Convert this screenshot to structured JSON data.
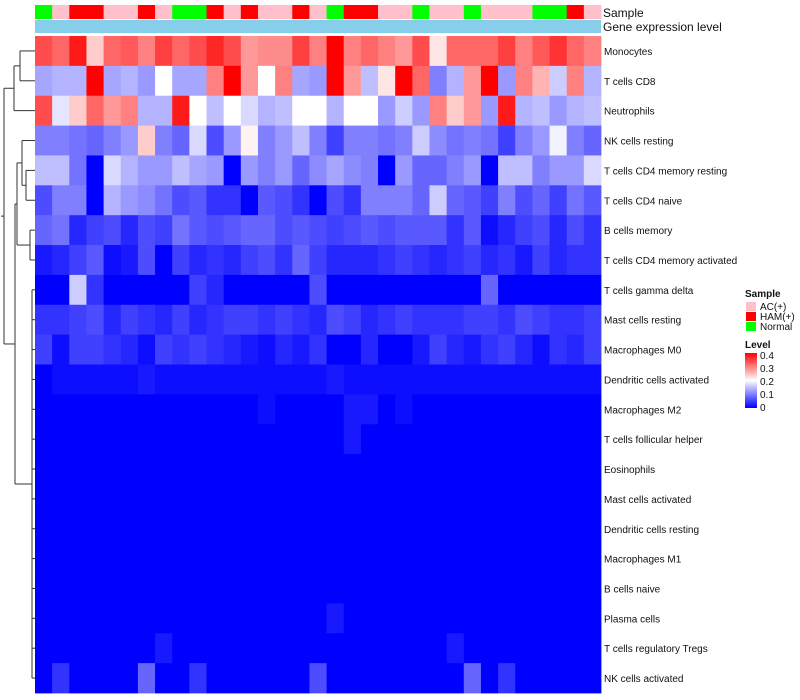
{
  "chart_data": {
    "type": "heatmap",
    "annotation_rows": [
      "Sample",
      "Gene expression level"
    ],
    "sample_groups": [
      "N",
      "AC",
      "H",
      "H",
      "AC",
      "AC",
      "H",
      "AC",
      "N",
      "N",
      "H",
      "AC",
      "H",
      "AC",
      "AC",
      "H",
      "AC",
      "N",
      "H",
      "H",
      "AC",
      "AC",
      "N",
      "AC",
      "AC",
      "N",
      "AC",
      "AC",
      "AC",
      "N",
      "N",
      "H",
      "AC"
    ],
    "sample_group_labels": {
      "AC": "AC(+)",
      "H": "HAM(+)",
      "N": "Normal"
    },
    "rows": [
      "Monocytes",
      "T cells CD8",
      "Neutrophils",
      "NK cells resting",
      "T cells CD4 memory resting",
      "T cells CD4 naive",
      "B cells memory",
      "T cells CD4 memory activated",
      "T cells gamma delta",
      "Mast cells resting",
      "Macrophages M0",
      "Dendritic cells activated",
      "Macrophages M2",
      "T cells follicular helper",
      "Eosinophils",
      "Mast cells activated",
      "Dendritic cells resting",
      "Macrophages M1",
      "B cells naive",
      "Plasma cells",
      "T cells regulatory  Tregs",
      "NK cells activated"
    ],
    "values": [
      [
        0.34,
        0.32,
        0.38,
        0.24,
        0.32,
        0.33,
        0.3,
        0.35,
        0.32,
        0.34,
        0.37,
        0.34,
        0.28,
        0.29,
        0.29,
        0.35,
        0.3,
        0.4,
        0.3,
        0.32,
        0.3,
        0.28,
        0.34,
        0.22,
        0.32,
        0.32,
        0.32,
        0.35,
        0.3,
        0.33,
        0.36,
        0.32,
        0.3
      ],
      [
        0.13,
        0.14,
        0.14,
        0.4,
        0.13,
        0.14,
        0.12,
        0.2,
        0.13,
        0.13,
        0.3,
        0.4,
        0.28,
        0.2,
        0.3,
        0.13,
        0.12,
        0.4,
        0.28,
        0.15,
        0.22,
        0.4,
        0.32,
        0.1,
        0.14,
        0.28,
        0.4,
        0.12,
        0.3,
        0.26,
        0.16,
        0.3,
        0.14
      ],
      [
        0.34,
        0.18,
        0.24,
        0.32,
        0.28,
        0.3,
        0.14,
        0.14,
        0.38,
        0.2,
        0.15,
        0.2,
        0.17,
        0.14,
        0.15,
        0.2,
        0.2,
        0.14,
        0.2,
        0.2,
        0.12,
        0.16,
        0.12,
        0.3,
        0.24,
        0.28,
        0.12,
        0.38,
        0.14,
        0.15,
        0.12,
        0.14,
        0.15
      ],
      [
        0.1,
        0.1,
        0.09,
        0.08,
        0.1,
        0.12,
        0.24,
        0.1,
        0.08,
        0.17,
        0.06,
        0.12,
        0.21,
        0.1,
        0.12,
        0.15,
        0.1,
        0.05,
        0.1,
        0.1,
        0.09,
        0.1,
        0.16,
        0.11,
        0.09,
        0.1,
        0.09,
        0.05,
        0.1,
        0.12,
        0.19,
        0.1,
        0.08
      ],
      [
        0.15,
        0.15,
        0.09,
        0.0,
        0.17,
        0.14,
        0.12,
        0.12,
        0.15,
        0.13,
        0.12,
        0.0,
        0.12,
        0.1,
        0.12,
        0.08,
        0.11,
        0.13,
        0.11,
        0.1,
        0.0,
        0.12,
        0.08,
        0.08,
        0.1,
        0.12,
        0.0,
        0.15,
        0.15,
        0.1,
        0.12,
        0.12,
        0.17
      ],
      [
        0.06,
        0.1,
        0.1,
        0.0,
        0.14,
        0.12,
        0.11,
        0.09,
        0.06,
        0.07,
        0.04,
        0.04,
        0.0,
        0.07,
        0.06,
        0.04,
        0.0,
        0.06,
        0.04,
        0.1,
        0.1,
        0.1,
        0.08,
        0.16,
        0.08,
        0.07,
        0.05,
        0.1,
        0.06,
        0.08,
        0.05,
        0.09,
        0.07
      ],
      [
        0.08,
        0.09,
        0.03,
        0.05,
        0.06,
        0.03,
        0.06,
        0.05,
        0.09,
        0.07,
        0.06,
        0.07,
        0.08,
        0.08,
        0.06,
        0.07,
        0.06,
        0.05,
        0.06,
        0.07,
        0.06,
        0.07,
        0.07,
        0.07,
        0.04,
        0.07,
        0.01,
        0.03,
        0.05,
        0.06,
        0.03,
        0.06,
        0.04
      ],
      [
        0.02,
        0.03,
        0.05,
        0.07,
        0.01,
        0.02,
        0.06,
        0.0,
        0.05,
        0.03,
        0.04,
        0.03,
        0.05,
        0.06,
        0.04,
        0.08,
        0.05,
        0.03,
        0.03,
        0.03,
        0.04,
        0.05,
        0.04,
        0.03,
        0.04,
        0.05,
        0.03,
        0.04,
        0.02,
        0.05,
        0.03,
        0.04,
        0.04
      ],
      [
        0.0,
        0.0,
        0.16,
        0.04,
        0.0,
        0.0,
        0.0,
        0.0,
        0.0,
        0.05,
        0.03,
        0.0,
        0.0,
        0.0,
        0.0,
        0.0,
        0.06,
        0.0,
        0.0,
        0.0,
        0.0,
        0.0,
        0.0,
        0.0,
        0.0,
        0.0,
        0.08,
        0.0,
        0.0,
        0.0,
        0.0,
        0.0,
        0.0
      ],
      [
        0.04,
        0.04,
        0.05,
        0.06,
        0.03,
        0.05,
        0.04,
        0.03,
        0.05,
        0.03,
        0.04,
        0.05,
        0.05,
        0.04,
        0.05,
        0.04,
        0.03,
        0.06,
        0.05,
        0.03,
        0.04,
        0.05,
        0.04,
        0.04,
        0.04,
        0.05,
        0.05,
        0.04,
        0.06,
        0.05,
        0.04,
        0.04,
        0.05
      ],
      [
        0.05,
        0.01,
        0.05,
        0.05,
        0.04,
        0.03,
        0.01,
        0.05,
        0.04,
        0.05,
        0.04,
        0.03,
        0.02,
        0.01,
        0.03,
        0.02,
        0.04,
        0.0,
        0.0,
        0.03,
        0.0,
        0.0,
        0.02,
        0.05,
        0.03,
        0.02,
        0.04,
        0.05,
        0.03,
        0.01,
        0.04,
        0.03,
        0.05
      ],
      [
        0.0,
        0.01,
        0.01,
        0.01,
        0.01,
        0.01,
        0.02,
        0.01,
        0.01,
        0.01,
        0.01,
        0.01,
        0.01,
        0.01,
        0.01,
        0.01,
        0.01,
        0.02,
        0.01,
        0.01,
        0.01,
        0.01,
        0.01,
        0.01,
        0.01,
        0.01,
        0.01,
        0.01,
        0.01,
        0.01,
        0.01,
        0.01,
        0.01
      ],
      [
        0.0,
        0.0,
        0.0,
        0.0,
        0.0,
        0.0,
        0.0,
        0.0,
        0.0,
        0.0,
        0.0,
        0.0,
        0.0,
        0.01,
        0.0,
        0.0,
        0.0,
        0.0,
        0.02,
        0.02,
        0.0,
        0.01,
        0.0,
        0.0,
        0.0,
        0.0,
        0.0,
        0.0,
        0.0,
        0.0,
        0.0,
        0.0,
        0.0
      ],
      [
        0.0,
        0.0,
        0.0,
        0.0,
        0.0,
        0.0,
        0.0,
        0.0,
        0.0,
        0.0,
        0.0,
        0.0,
        0.0,
        0.0,
        0.0,
        0.0,
        0.0,
        0.0,
        0.02,
        0.0,
        0.0,
        0.0,
        0.0,
        0.0,
        0.0,
        0.0,
        0.0,
        0.0,
        0.0,
        0.0,
        0.0,
        0.0,
        0.0
      ],
      [
        0.0,
        0.0,
        0.0,
        0.0,
        0.0,
        0.0,
        0.0,
        0.0,
        0.0,
        0.0,
        0.0,
        0.0,
        0.0,
        0.0,
        0.0,
        0.0,
        0.0,
        0.0,
        0.0,
        0.0,
        0.0,
        0.0,
        0.0,
        0.0,
        0.0,
        0.0,
        0.0,
        0.0,
        0.0,
        0.0,
        0.0,
        0.0,
        0.0
      ],
      [
        0.0,
        0.0,
        0.0,
        0.0,
        0.0,
        0.0,
        0.0,
        0.0,
        0.0,
        0.0,
        0.0,
        0.0,
        0.0,
        0.0,
        0.0,
        0.0,
        0.0,
        0.0,
        0.0,
        0.0,
        0.0,
        0.0,
        0.0,
        0.0,
        0.0,
        0.0,
        0.0,
        0.0,
        0.0,
        0.0,
        0.0,
        0.0,
        0.0
      ],
      [
        0.0,
        0.0,
        0.0,
        0.0,
        0.0,
        0.0,
        0.0,
        0.0,
        0.0,
        0.0,
        0.0,
        0.0,
        0.0,
        0.0,
        0.0,
        0.0,
        0.0,
        0.0,
        0.0,
        0.0,
        0.0,
        0.0,
        0.0,
        0.0,
        0.0,
        0.0,
        0.0,
        0.0,
        0.0,
        0.0,
        0.0,
        0.0,
        0.0
      ],
      [
        0.0,
        0.0,
        0.0,
        0.0,
        0.0,
        0.0,
        0.0,
        0.0,
        0.0,
        0.0,
        0.0,
        0.0,
        0.0,
        0.0,
        0.0,
        0.0,
        0.0,
        0.0,
        0.0,
        0.0,
        0.0,
        0.0,
        0.0,
        0.0,
        0.0,
        0.0,
        0.0,
        0.0,
        0.0,
        0.0,
        0.0,
        0.0,
        0.0
      ],
      [
        0.0,
        0.0,
        0.0,
        0.0,
        0.0,
        0.0,
        0.0,
        0.0,
        0.0,
        0.0,
        0.0,
        0.0,
        0.0,
        0.0,
        0.0,
        0.0,
        0.0,
        0.0,
        0.0,
        0.0,
        0.0,
        0.0,
        0.0,
        0.0,
        0.0,
        0.0,
        0.0,
        0.0,
        0.0,
        0.0,
        0.0,
        0.0,
        0.0
      ],
      [
        0.0,
        0.0,
        0.0,
        0.0,
        0.0,
        0.0,
        0.0,
        0.0,
        0.0,
        0.0,
        0.0,
        0.0,
        0.0,
        0.0,
        0.0,
        0.0,
        0.0,
        0.02,
        0.0,
        0.0,
        0.0,
        0.0,
        0.0,
        0.0,
        0.0,
        0.0,
        0.0,
        0.0,
        0.0,
        0.0,
        0.0,
        0.0,
        0.0
      ],
      [
        0.0,
        0.0,
        0.0,
        0.0,
        0.0,
        0.0,
        0.0,
        0.02,
        0.0,
        0.0,
        0.0,
        0.0,
        0.0,
        0.0,
        0.0,
        0.0,
        0.0,
        0.0,
        0.0,
        0.0,
        0.0,
        0.0,
        0.0,
        0.0,
        0.02,
        0.0,
        0.0,
        0.0,
        0.0,
        0.0,
        0.0,
        0.0,
        0.0
      ],
      [
        0.0,
        0.04,
        0.0,
        0.0,
        0.0,
        0.0,
        0.08,
        0.0,
        0.0,
        0.04,
        0.0,
        0.0,
        0.0,
        0.0,
        0.0,
        0.0,
        0.06,
        0.0,
        0.0,
        0.0,
        0.0,
        0.0,
        0.0,
        0.0,
        0.0,
        0.08,
        0.0,
        0.04,
        0.0,
        0.0,
        0.0,
        0.0,
        0.0
      ]
    ],
    "value_range": [
      0,
      0.4
    ],
    "color_scale": {
      "low": "#0000ff",
      "mid": "#ffffff",
      "high": "#ff0000",
      "mid_value": 0.2
    },
    "annotation_colors": {
      "AC": "#ffc0cb",
      "H": "#ff0000",
      "N": "#00ff00",
      "gene_expression": "#87ceeb"
    },
    "legend": {
      "sample_title": "Sample",
      "level_title": "Level",
      "level_ticks": [
        "0.4",
        "0.3",
        "0.2",
        "0.1",
        "0"
      ]
    }
  }
}
